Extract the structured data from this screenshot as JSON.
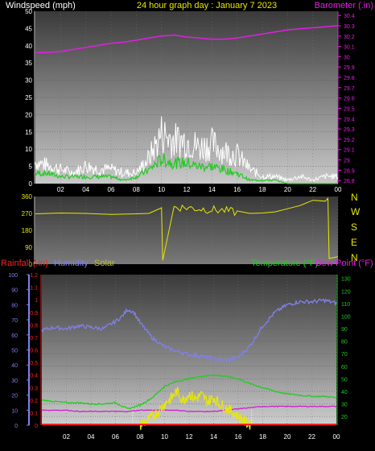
{
  "header": {
    "left_label": "Windspeed (mph)",
    "center_label": "24 hour graph day : January 7 2023",
    "right_label": "Barometer (.in)"
  },
  "compass": [
    "N",
    "W",
    "S",
    "E",
    "N"
  ],
  "bottom_header": {
    "rainfall_label": "Rainfall (.in)",
    "humidity_label": "Humidity",
    "solar_label": "Solar",
    "temperature_label": "Temperature (°F)",
    "dewpoint_label": "Dew Point (°F)"
  },
  "colors": {
    "wind_gust": "#ffffff",
    "wind_avg": "#22cc22",
    "barometer": "#e020e0",
    "direction": "#e8e800",
    "humidity": "#8080ee",
    "temperature": "#22cc22",
    "dewpoint": "#cc22cc",
    "solar": "#e8e800",
    "rain": "#ff2020"
  },
  "chart_data": [
    {
      "type": "line",
      "title": "24 hour graph day : January 7 2023",
      "x_ticks": [
        "02",
        "04",
        "06",
        "08",
        "10",
        "12",
        "14",
        "16",
        "18",
        "20",
        "22",
        "00"
      ],
      "xlim": [
        0,
        24
      ],
      "ylabel": "Windspeed (mph)",
      "y_ticks": [
        "0",
        "5",
        "10",
        "15",
        "20",
        "25",
        "30",
        "35",
        "40",
        "45",
        "50"
      ],
      "ylim": [
        0,
        50
      ],
      "y2label": "Barometer (.in)",
      "y2_ticks": [
        "28.8",
        "28.9",
        "29",
        "29.1",
        "29.2",
        "29.3",
        "29.4",
        "29.5",
        "29.6",
        "29.7",
        "29.8",
        "29.9",
        "30",
        "30.1",
        "30.2",
        "30.3",
        "30.4"
      ],
      "y2lim": [
        28.77,
        30.44
      ],
      "series": [
        {
          "axis": "right",
          "x": [
            0,
            1,
            2,
            3,
            4,
            5,
            6,
            7,
            8,
            9,
            10,
            11,
            12,
            13,
            14,
            15,
            16,
            17,
            18,
            19,
            20,
            21,
            22,
            23,
            24
          ],
          "values": [
            30.04,
            30.04,
            30.05,
            30.07,
            30.09,
            30.11,
            30.13,
            30.14,
            30.16,
            30.18,
            30.2,
            30.21,
            30.19,
            30.18,
            30.17,
            30.17,
            30.18,
            30.2,
            30.22,
            30.24,
            30.26,
            30.27,
            30.28,
            30.29,
            30.3
          ]
        },
        {
          "x": [
            0,
            1,
            2,
            3,
            4,
            5,
            6,
            7,
            8,
            9,
            10,
            11,
            12,
            13,
            14,
            15,
            16,
            17,
            18,
            19,
            20,
            21,
            22,
            23,
            24
          ],
          "values": [
            6,
            5,
            4,
            3,
            5,
            4,
            4,
            3,
            3,
            7,
            14,
            12,
            12,
            10,
            11,
            9,
            8,
            4,
            2,
            2,
            1,
            2,
            1,
            2,
            2
          ]
        },
        {
          "x": [
            0,
            1,
            2,
            3,
            4,
            5,
            6,
            7,
            8,
            9,
            10,
            11,
            12,
            13,
            14,
            15,
            16,
            17,
            18,
            19,
            20,
            21,
            22,
            23,
            24
          ],
          "values": [
            3,
            3,
            2,
            2,
            2,
            2,
            2,
            1,
            2,
            4,
            7,
            6,
            6,
            5,
            5,
            4,
            3,
            1,
            1,
            1,
            0,
            0,
            0,
            0,
            0
          ]
        }
      ]
    },
    {
      "type": "line",
      "x_ticks": [
        "02",
        "04",
        "06",
        "08",
        "10",
        "12",
        "14",
        "16",
        "18",
        "20",
        "22",
        "00"
      ],
      "xlim": [
        0,
        24
      ],
      "y_ticks": [
        "0",
        "90",
        "180",
        "270",
        "360"
      ],
      "ylim": [
        0,
        360
      ],
      "series": [
        {
          "x": [
            0,
            2,
            4,
            6,
            8,
            9,
            10,
            10.1,
            11,
            12,
            13,
            14,
            15,
            16,
            17,
            18,
            19,
            20,
            21,
            22,
            23,
            23.2,
            23.3,
            24
          ],
          "values": [
            268,
            272,
            270,
            265,
            268,
            270,
            300,
            20,
            305,
            300,
            295,
            290,
            285,
            275,
            270,
            272,
            278,
            295,
            312,
            340,
            335,
            350,
            30,
            40
          ]
        }
      ]
    },
    {
      "type": "line",
      "x_ticks": [
        "02",
        "04",
        "06",
        "08",
        "10",
        "12",
        "14",
        "16",
        "18",
        "20",
        "22",
        "00"
      ],
      "xlim": [
        0,
        24
      ],
      "y_ticks": [
        "0",
        "0.1",
        "0.2",
        "0.3",
        "0.4",
        "0.5",
        "0.6",
        "0.7",
        "0.8",
        "0.9",
        "1",
        "1.1",
        "1.2"
      ],
      "ylim": [
        0,
        1.2
      ],
      "y_humidity_ticks": [
        "0",
        "10",
        "20",
        "30",
        "40",
        "50",
        "60",
        "70",
        "80",
        "90",
        "100"
      ],
      "y_humidity_lim": [
        0,
        100
      ],
      "y_right_ticks": [
        "20",
        "30",
        "40",
        "50",
        "60",
        "70",
        "80",
        "90",
        "100",
        "110",
        "120",
        "130"
      ],
      "y_right_lim": [
        13,
        133
      ],
      "series": [
        {
          "name": "Humidity",
          "axis": "humidity",
          "x": [
            0,
            1,
            2,
            3,
            4,
            5,
            6,
            6.5,
            7,
            7.5,
            8,
            9,
            10,
            11,
            12,
            13,
            14,
            15,
            16,
            17,
            18,
            19,
            20,
            21,
            22,
            23,
            24
          ],
          "values": [
            63,
            65,
            64,
            66,
            65,
            64,
            69,
            72,
            77,
            75,
            68,
            58,
            52,
            49,
            47,
            46,
            44,
            43,
            45,
            53,
            66,
            75,
            80,
            82,
            82,
            83,
            81
          ]
        },
        {
          "name": "Temperature (°F)",
          "axis": "right",
          "x": [
            0,
            1,
            2,
            3,
            4,
            5,
            6,
            7,
            8,
            9,
            10,
            11,
            12,
            13,
            14,
            15,
            16,
            17,
            18,
            19,
            20,
            21,
            22,
            23,
            24
          ],
          "values": [
            33,
            32,
            31,
            31,
            30,
            30,
            31,
            26,
            29,
            35,
            44,
            48,
            50,
            52,
            53,
            52,
            50,
            46,
            43,
            40,
            38,
            37,
            36,
            36,
            35
          ]
        },
        {
          "name": "Dew Point (°F)",
          "axis": "right",
          "x": [
            0,
            1,
            2,
            3,
            4,
            5,
            6,
            7,
            8,
            9,
            10,
            11,
            12,
            13,
            14,
            15,
            16,
            17,
            18,
            19,
            20,
            21,
            22,
            23,
            24
          ],
          "values": [
            25,
            25,
            25,
            24,
            24,
            24,
            24,
            24,
            25,
            25,
            25,
            25,
            24,
            24,
            24,
            25,
            26,
            27,
            28,
            28,
            28,
            28,
            28,
            28,
            28
          ]
        },
        {
          "name": "Solar",
          "axis": "right",
          "x": [
            8,
            8.5,
            9,
            9.5,
            10,
            10.5,
            11,
            11.5,
            12,
            12.5,
            13,
            13.5,
            14,
            14.5,
            15,
            15.5,
            16,
            16.5,
            17
          ],
          "values": [
            13,
            16,
            20,
            24,
            30,
            34,
            40,
            33,
            38,
            34,
            37,
            32,
            35,
            30,
            27,
            24,
            20,
            16,
            13
          ]
        },
        {
          "name": "Rainfall (.in)",
          "axis": "left",
          "x": [
            0,
            24
          ],
          "values": [
            0,
            0
          ]
        }
      ]
    }
  ]
}
